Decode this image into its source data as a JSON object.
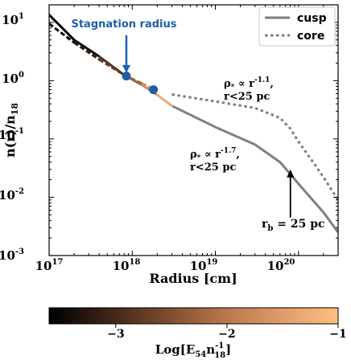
{
  "chart_data": {
    "type": "line",
    "x_scale": "log",
    "y_scale": "log",
    "xlim": [
      1e+17,
      3e+20
    ],
    "ylim": [
      0.001,
      20
    ],
    "xlabel": "Radius [cm]",
    "ylabel": "n(r)/n",
    "ylabel_sub": "18",
    "x_ticks": [
      {
        "value": 1e+17,
        "base": "10",
        "exp": "17"
      },
      {
        "value": 1e+18,
        "base": "10",
        "exp": "18"
      },
      {
        "value": 1e+19,
        "base": "10",
        "exp": "19"
      },
      {
        "value": 1e+20,
        "base": "10",
        "exp": "20"
      }
    ],
    "y_ticks": [
      {
        "value": 0.001,
        "base": "10",
        "exp": "-3"
      },
      {
        "value": 0.01,
        "base": "10",
        "exp": "-2"
      },
      {
        "value": 0.1,
        "base": "10",
        "exp": "-1"
      },
      {
        "value": 1,
        "base": "10",
        "exp": "0"
      },
      {
        "value": 10,
        "base": "10",
        "exp": "1"
      }
    ],
    "series": [
      {
        "name": "cusp",
        "style": "solid",
        "color": "#7f7f7f",
        "x": [
          3e+18,
          1e+19,
          3e+19,
          6e+19,
          8e+19,
          1e+20,
          2e+20,
          3e+20
        ],
        "y": [
          0.37,
          0.16,
          0.08,
          0.04,
          0.025,
          0.017,
          0.0055,
          0.0025
        ]
      },
      {
        "name": "core",
        "style": "dotted",
        "color": "#7f7f7f",
        "x": [
          3e+18,
          1e+19,
          3e+19,
          6e+19,
          8e+19,
          1e+20,
          1.5e+20,
          2e+20,
          3e+20
        ],
        "y": [
          0.58,
          0.44,
          0.34,
          0.23,
          0.15,
          0.09,
          0.04,
          0.022,
          0.009
        ]
      },
      {
        "name": "cusp-inner-energy-colored",
        "style": "solid",
        "colorscale_stops": [
          -3.6,
          -3.6,
          -3.2,
          -2.6,
          -2.0,
          -1.5,
          -1.1
        ],
        "x": [
          1e+17,
          2e+17,
          4e+17,
          8e+17,
          1.3e+18,
          2e+18,
          3e+18
        ],
        "y": [
          13.5,
          5.0,
          2.6,
          1.25,
          0.85,
          0.57,
          0.37
        ]
      },
      {
        "name": "core-inner-energy-colored",
        "style": "dashed",
        "colorscale_stops": [
          -3.6,
          -3.4,
          -3.0,
          -2.5,
          -2.0,
          -1.5
        ],
        "x": [
          1e+17,
          2e+17,
          4e+17,
          8e+17,
          1.3e+18,
          1.8e+18
        ],
        "y": [
          9.5,
          4.5,
          2.3,
          1.25,
          0.9,
          0.72
        ]
      }
    ],
    "points": [
      {
        "x": 8.5e+17,
        "y": 1.2,
        "color": "#1f5fa8"
      },
      {
        "x": 1.8e+18,
        "y": 0.7,
        "color": "#1f5fa8"
      }
    ],
    "annotations": {
      "stagnation": {
        "text": "Stagnation radius",
        "arrow_to": [
          8.5e+17,
          1.35
        ],
        "arrow_from_y": 6.0
      },
      "rb": {
        "text": "r",
        "sub": "b",
        "rest": " = 25 pc",
        "arrow_to": [
          8e+19,
          0.03
        ],
        "arrow_from_y": 0.0045
      },
      "core_slope": {
        "line1_pre": "ρ",
        "line1_sub": "*",
        "line1_mid": " ∝ r",
        "line1_exp": "-1.1",
        "line1_post": ",",
        "line2": "r<25 pc"
      },
      "cusp_slope": {
        "line1_pre": "ρ",
        "line1_sub": "*",
        "line1_mid": " ∝ r",
        "line1_exp": "-1.7",
        "line1_post": ",",
        "line2": "r<25 pc"
      }
    },
    "legend": {
      "position": "top-right",
      "entries": [
        {
          "label": "cusp",
          "style": "solid",
          "color": "#7f7f7f"
        },
        {
          "label": "core",
          "style": "dotted",
          "color": "#7f7f7f"
        }
      ]
    },
    "colorbar": {
      "range": [
        -3.6,
        -1.0
      ],
      "ticks": [
        {
          "value": -3,
          "label": "−3"
        },
        {
          "value": -2,
          "label": "−2"
        },
        {
          "value": -1,
          "label": "−1"
        }
      ],
      "label_pre": "Log[E",
      "label_sub1": "54",
      "label_mid": "n",
      "label_sup": "-1",
      "label_sub2": "18",
      "label_post": "]",
      "colors": [
        "#000000",
        "#3a2416",
        "#7a4a2c",
        "#b8744a",
        "#e09a68",
        "#ffc080"
      ]
    }
  }
}
